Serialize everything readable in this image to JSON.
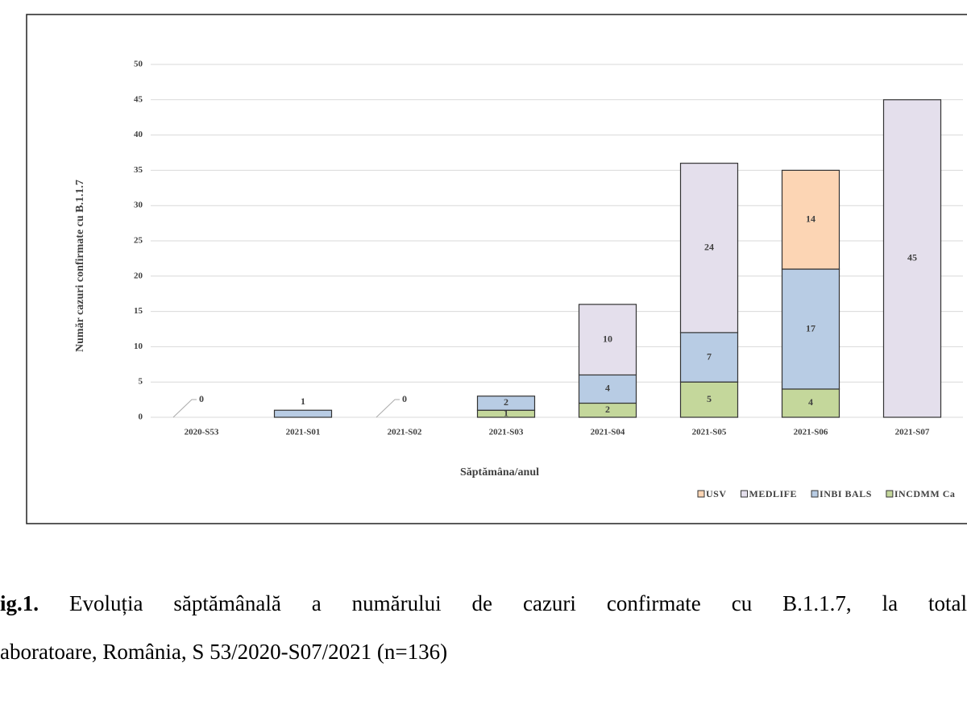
{
  "chart_data": {
    "type": "stacked-bar",
    "y_label": "Număr cazuri confirmate  cu B.1.1.7",
    "x_label": "Săptămâna/anul",
    "categories": [
      "2020-S53",
      "2021-S01",
      "2021-S02",
      "2021-S03",
      "2021-S04",
      "2021-S05",
      "2021-S06",
      "2021-S07"
    ],
    "series": [
      {
        "name": "INCDMM Ca",
        "color": "#c4d79b",
        "values": [
          0,
          null,
          0,
          1,
          2,
          5,
          4,
          null
        ]
      },
      {
        "name": "INBI BALS",
        "color": "#b8cce4",
        "values": [
          null,
          1,
          null,
          2,
          4,
          7,
          17,
          null
        ]
      },
      {
        "name": "MEDLIFE",
        "color": "#e4dfec",
        "values": [
          null,
          null,
          null,
          null,
          10,
          24,
          null,
          45
        ]
      },
      {
        "name": "USV",
        "color": "#fcd5b4",
        "values": [
          null,
          null,
          null,
          null,
          null,
          null,
          14,
          null
        ]
      }
    ],
    "ylim": [
      0,
      50
    ],
    "yticks": [
      0,
      5,
      10,
      15,
      20,
      25,
      30,
      35,
      40,
      45,
      50
    ],
    "grid": true
  },
  "caption": {
    "label": "ig.1.",
    "line1": "Evoluția săptămânală a numărului de cazuri confirmate cu B.1.1.7, la total",
    "line2": "aboratoare, România, S 53/2020-S07/2021 (n=136)"
  }
}
